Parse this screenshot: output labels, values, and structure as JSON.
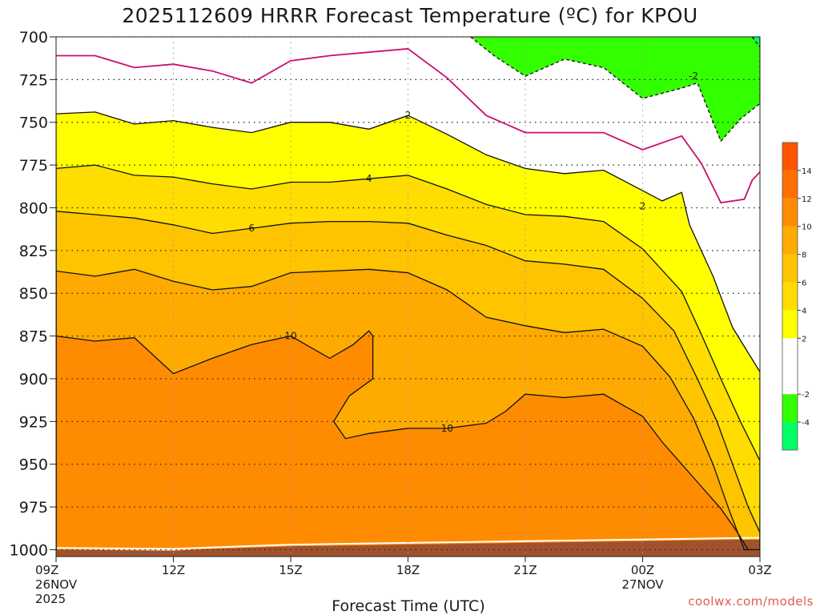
{
  "title": "2025112609 HRRR Forecast Temperature (ºC) for KPOU",
  "credit": "coolwx.com/models",
  "chart_data": {
    "type": "area",
    "title": "2025112609 HRRR Forecast Temperature (ºC) for KPOU",
    "xlabel": "Forecast Time (UTC)",
    "ylabel": "",
    "y_axis": {
      "ticks": [
        700,
        725,
        750,
        775,
        800,
        825,
        850,
        875,
        900,
        925,
        950,
        975,
        1000
      ],
      "range": [
        1004,
        700
      ],
      "direction": "pressure decreasing upward"
    },
    "x_axis": {
      "range_hours": [
        9,
        27
      ],
      "ticks": [
        {
          "hour": 9,
          "lines": [
            "09Z",
            "26NOV",
            "2025"
          ]
        },
        {
          "hour": 12,
          "lines": [
            "12Z"
          ]
        },
        {
          "hour": 15,
          "lines": [
            "15Z"
          ]
        },
        {
          "hour": 18,
          "lines": [
            "18Z"
          ]
        },
        {
          "hour": 21,
          "lines": [
            "21Z"
          ]
        },
        {
          "hour": 24,
          "lines": [
            "00Z",
            "27NOV"
          ]
        },
        {
          "hour": 27,
          "lines": [
            "03Z"
          ]
        }
      ]
    },
    "grid": true,
    "legend_position": "right",
    "colorbar": [
      {
        "range": [
          -6,
          -4
        ],
        "color": "#00ff66"
      },
      {
        "range": [
          -4,
          -2
        ],
        "color": "#33ff00"
      },
      {
        "range": [
          -2,
          2
        ],
        "color": "#ffffff"
      },
      {
        "range": [
          2,
          4
        ],
        "color": "#ffff00"
      },
      {
        "range": [
          4,
          6
        ],
        "color": "#ffdd00"
      },
      {
        "range": [
          6,
          8
        ],
        "color": "#ffc400"
      },
      {
        "range": [
          8,
          10
        ],
        "color": "#ffaa00"
      },
      {
        "range": [
          10,
          12
        ],
        "color": "#ff8c00"
      },
      {
        "range": [
          12,
          14
        ],
        "color": "#ff7000"
      },
      {
        "range": [
          14,
          16
        ],
        "color": "#ff5500"
      }
    ],
    "colorbar_labels": [
      "-4",
      "-2",
      "2",
      "4",
      "6",
      "8",
      "10",
      "12",
      "14"
    ],
    "ground_color": "#a0522d",
    "isotherms": [
      {
        "value": 10,
        "points": [
          [
            9,
            1000
          ],
          [
            9,
            875
          ],
          [
            10,
            878
          ],
          [
            11,
            876
          ],
          [
            12,
            897
          ],
          [
            13,
            888
          ],
          [
            14,
            880
          ],
          [
            15,
            875
          ],
          [
            16,
            888
          ],
          [
            16.6,
            880
          ],
          [
            17,
            872
          ],
          [
            17.1,
            875
          ],
          [
            17.1,
            900
          ],
          [
            16.5,
            910
          ],
          [
            16.1,
            925
          ],
          [
            16.4,
            935
          ],
          [
            17,
            932
          ],
          [
            18,
            929
          ],
          [
            19,
            929
          ],
          [
            20,
            926
          ],
          [
            20.5,
            919
          ],
          [
            21,
            909
          ],
          [
            22,
            911
          ],
          [
            23,
            909
          ],
          [
            24,
            922
          ],
          [
            24.5,
            937
          ],
          [
            25,
            950
          ],
          [
            25.5,
            963
          ],
          [
            26,
            976
          ],
          [
            26.4,
            989
          ],
          [
            26.7,
            1000
          ]
        ]
      },
      {
        "value": 8,
        "points": [
          [
            9,
            1000
          ],
          [
            9,
            837
          ],
          [
            10,
            840
          ],
          [
            11,
            836
          ],
          [
            12,
            843
          ],
          [
            13,
            848
          ],
          [
            14,
            846
          ],
          [
            15,
            838
          ],
          [
            16,
            837
          ],
          [
            17,
            836
          ],
          [
            18,
            838
          ],
          [
            19,
            848
          ],
          [
            20,
            864
          ],
          [
            21,
            869
          ],
          [
            22,
            873
          ],
          [
            23,
            871
          ],
          [
            24,
            881
          ],
          [
            24.7,
            899
          ],
          [
            25.3,
            923
          ],
          [
            25.8,
            950
          ],
          [
            26.2,
            976
          ],
          [
            26.6,
            1000
          ],
          [
            27,
            1000
          ]
        ]
      },
      {
        "value": 6,
        "points": [
          [
            9,
            1000
          ],
          [
            9,
            802
          ],
          [
            10,
            804
          ],
          [
            11,
            806
          ],
          [
            12,
            810
          ],
          [
            13,
            815
          ],
          [
            14,
            812
          ],
          [
            15,
            809
          ],
          [
            16,
            808
          ],
          [
            17,
            808
          ],
          [
            18,
            809
          ],
          [
            19,
            816
          ],
          [
            20,
            822
          ],
          [
            21,
            831
          ],
          [
            22,
            833
          ],
          [
            23,
            836
          ],
          [
            24,
            853
          ],
          [
            24.8,
            872
          ],
          [
            25.4,
            900
          ],
          [
            25.9,
            925
          ],
          [
            26.3,
            950
          ],
          [
            26.7,
            975
          ],
          [
            27,
            990
          ],
          [
            27,
            1000
          ]
        ]
      },
      {
        "value": 4,
        "points": [
          [
            9,
            1000
          ],
          [
            9,
            777
          ],
          [
            10,
            775
          ],
          [
            11,
            781
          ],
          [
            12,
            782
          ],
          [
            13,
            786
          ],
          [
            14,
            789
          ],
          [
            15,
            785
          ],
          [
            16,
            785
          ],
          [
            17,
            783
          ],
          [
            18,
            781
          ],
          [
            19,
            789
          ],
          [
            20,
            798
          ],
          [
            21,
            804
          ],
          [
            22,
            805
          ],
          [
            23,
            808
          ],
          [
            24,
            824
          ],
          [
            25,
            849
          ],
          [
            25.5,
            874
          ],
          [
            26,
            900
          ],
          [
            26.5,
            925
          ],
          [
            27,
            948
          ],
          [
            27,
            1000
          ]
        ]
      },
      {
        "value": 2,
        "points": [
          [
            9,
            1000
          ],
          [
            9,
            745
          ],
          [
            10,
            744
          ],
          [
            11,
            751
          ],
          [
            12,
            749
          ],
          [
            13,
            753
          ],
          [
            14,
            756
          ],
          [
            15,
            750
          ],
          [
            16,
            750
          ],
          [
            17,
            754
          ],
          [
            18,
            746
          ],
          [
            19,
            757
          ],
          [
            20,
            769
          ],
          [
            21,
            777
          ],
          [
            22,
            780
          ],
          [
            23,
            778
          ],
          [
            24,
            790
          ],
          [
            24.5,
            796
          ],
          [
            25,
            791
          ],
          [
            25.2,
            810
          ],
          [
            25.8,
            840
          ],
          [
            26.3,
            870
          ],
          [
            27,
            896
          ],
          [
            27,
            1000
          ]
        ]
      },
      {
        "value": -2,
        "points": [
          [
            19.6,
            700
          ],
          [
            20.2,
            711
          ],
          [
            21,
            723
          ],
          [
            22,
            713
          ],
          [
            23,
            718
          ],
          [
            24,
            736
          ],
          [
            25,
            730
          ],
          [
            25.4,
            727
          ],
          [
            26,
            761
          ],
          [
            26.5,
            748
          ],
          [
            27,
            739
          ],
          [
            27,
            700
          ]
        ]
      },
      {
        "value": -4,
        "points": [
          [
            26.8,
            700
          ],
          [
            27,
            706
          ],
          [
            27,
            700
          ]
        ]
      }
    ],
    "freezing_line": [
      [
        9,
        711
      ],
      [
        10,
        711
      ],
      [
        11,
        718
      ],
      [
        12,
        716
      ],
      [
        13,
        720
      ],
      [
        14,
        727
      ],
      [
        15,
        714
      ],
      [
        16,
        711
      ],
      [
        17,
        709
      ],
      [
        18,
        707
      ],
      [
        19,
        724
      ],
      [
        20,
        746
      ],
      [
        21,
        756
      ],
      [
        22,
        756
      ],
      [
        23,
        756
      ],
      [
        24,
        766
      ],
      [
        25,
        758
      ],
      [
        25.5,
        774
      ],
      [
        26,
        797
      ],
      [
        26.6,
        795
      ],
      [
        26.8,
        784
      ],
      [
        27,
        779
      ]
    ],
    "contour_labels": [
      {
        "text": "2",
        "hour": 18,
        "hpa": 746
      },
      {
        "text": "4",
        "hour": 17,
        "hpa": 783
      },
      {
        "text": "6",
        "hour": 14,
        "hpa": 812
      },
      {
        "text": "10",
        "hour": 15,
        "hpa": 875
      },
      {
        "text": "10",
        "hour": 19,
        "hpa": 929
      },
      {
        "text": "2",
        "hour": 24,
        "hpa": 799
      },
      {
        "text": "-2",
        "hour": 25.3,
        "hpa": 723
      }
    ]
  }
}
